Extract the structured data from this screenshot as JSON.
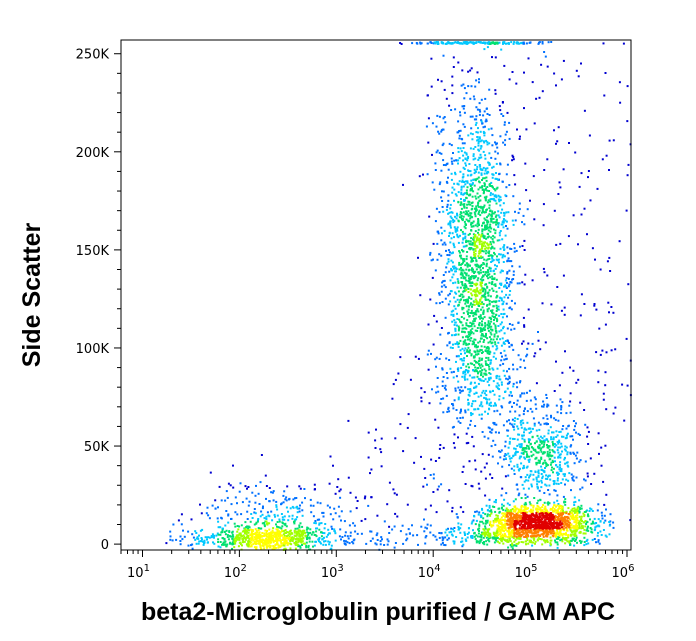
{
  "chart_data": {
    "type": "scatter",
    "subtype": "flow-cytometry-density-dot-plot",
    "title": "",
    "xlabel": "beta2-Microglobulin purified / GAM APC",
    "ylabel": "Side Scatter",
    "x_scale": "log",
    "xlim": [
      6,
      1100000
    ],
    "ylim": [
      -3000,
      257000
    ],
    "grid": false,
    "legend": "none",
    "x_ticks": [
      {
        "value": 10,
        "base": "10",
        "exp": "1"
      },
      {
        "value": 100,
        "base": "10",
        "exp": "2"
      },
      {
        "value": 1000,
        "base": "10",
        "exp": "3"
      },
      {
        "value": 10000,
        "base": "10",
        "exp": "4"
      },
      {
        "value": 100000,
        "base": "10",
        "exp": "5"
      },
      {
        "value": 1000000,
        "base": "10",
        "exp": "6"
      }
    ],
    "y_ticks": [
      {
        "value": 0,
        "label": "0"
      },
      {
        "value": 50000,
        "label": "50K"
      },
      {
        "value": 100000,
        "label": "100K"
      },
      {
        "value": 150000,
        "label": "150K"
      },
      {
        "value": 200000,
        "label": "200K"
      },
      {
        "value": 250000,
        "label": "250K"
      }
    ],
    "density_colors": [
      "#0000d0",
      "#0070ff",
      "#00c8ff",
      "#00e070",
      "#a0ff00",
      "#ffff00",
      "#ff8000",
      "#e00000"
    ],
    "populations": [
      {
        "description_center_x": 200,
        "center_y": 3000,
        "points": 900
      },
      {
        "description_center_x": 28000,
        "center_y": 150000,
        "points": 1700
      },
      {
        "description_center_x": 120000,
        "center_y": 12000,
        "points": 1300
      },
      {
        "description_center_x": 130000,
        "center_y": 48000,
        "points": 500
      },
      {
        "description_center_x": 30000,
        "center_y": 254000,
        "points": 150
      }
    ]
  }
}
